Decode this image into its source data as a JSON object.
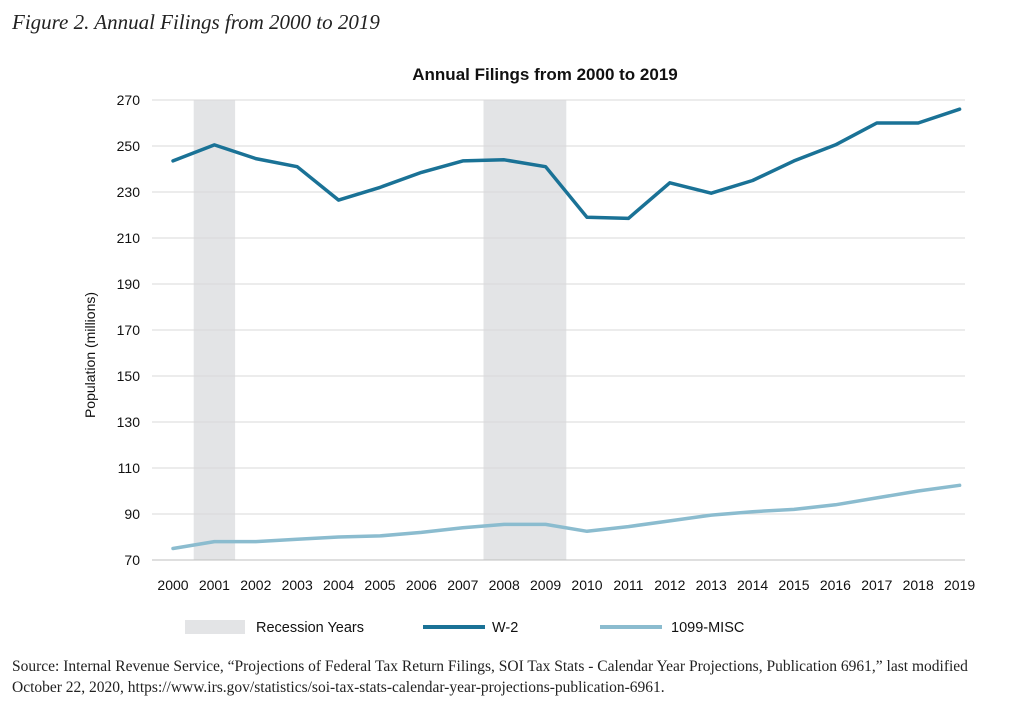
{
  "figure_caption": "Figure 2. Annual Filings from 2000 to 2019",
  "source_note": "Source: Internal Revenue Service, “Projections of Federal Tax Return Filings, SOI Tax Stats - Calendar Year Projections, Publication 6961,” last modified October 22, 2020, https://www.irs.gov/statistics/soi-tax-stats-calendar-year-projections-publication-6961.",
  "colors": {
    "w2": "#1a7296",
    "misc1099": "#8bbccf",
    "recession": "#e3e4e6",
    "grid": "#d9d9d9"
  },
  "chart_data": {
    "type": "line",
    "title": "Annual Filings from 2000 to 2019",
    "xlabel": "",
    "ylabel": "Population (millions)",
    "ylim": [
      70,
      270
    ],
    "yticks": [
      70,
      90,
      110,
      130,
      150,
      170,
      190,
      210,
      230,
      250,
      270
    ],
    "x": [
      2000,
      2001,
      2002,
      2003,
      2004,
      2005,
      2006,
      2007,
      2008,
      2009,
      2010,
      2011,
      2012,
      2013,
      2014,
      2015,
      2016,
      2017,
      2018,
      2019
    ],
    "grid": true,
    "legend": "bottom",
    "recession_periods": [
      {
        "start": 2000.5,
        "end": 2001.5
      },
      {
        "start": 2007.5,
        "end": 2009.5
      }
    ],
    "legend_items": [
      {
        "key": "recession",
        "label": "Recession Years"
      },
      {
        "key": "w2",
        "label": "W-2"
      },
      {
        "key": "misc1099",
        "label": "1099-MISC"
      }
    ],
    "series": [
      {
        "name": "W-2",
        "key": "w2",
        "values": [
          243.5,
          250.5,
          244.5,
          241,
          226.5,
          232,
          238.5,
          243.5,
          244,
          241,
          219,
          218.5,
          234,
          229.5,
          235,
          243.5,
          250.5,
          260,
          260,
          266
        ]
      },
      {
        "name": "1099-MISC",
        "key": "misc1099",
        "values": [
          75,
          78,
          78,
          79,
          80,
          80.5,
          82,
          84,
          85.5,
          85.5,
          82.5,
          84.5,
          87,
          89.5,
          91,
          92,
          94,
          97,
          100,
          102.5
        ]
      }
    ]
  }
}
